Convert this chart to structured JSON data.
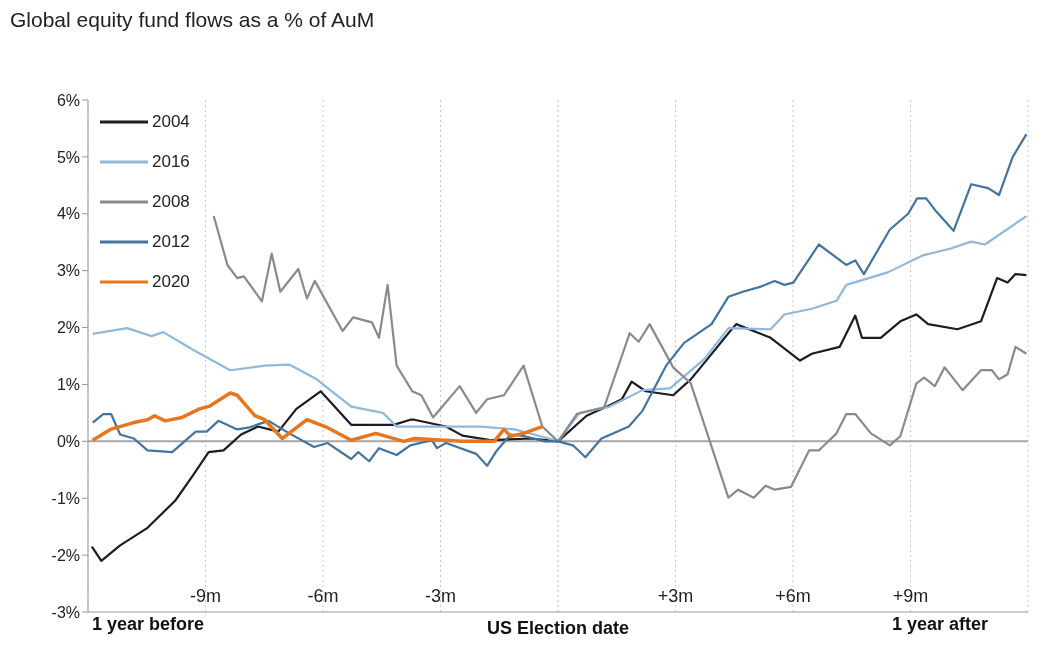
{
  "chart_data": {
    "type": "line",
    "title": "Global equity fund flows as a % of AuM",
    "xlim": [
      -12,
      12
    ],
    "xticks": [
      {
        "value": -9,
        "label": "-9m"
      },
      {
        "value": -6,
        "label": "-6m"
      },
      {
        "value": -3,
        "label": "-3m"
      },
      {
        "value": 3,
        "label": "+3m"
      },
      {
        "value": 6,
        "label": "+6m"
      },
      {
        "value": 9,
        "label": "+9m"
      }
    ],
    "annotations": [
      "1 year before",
      "1 year after"
    ],
    "ylim": [
      -3,
      6
    ],
    "yticks": [
      {
        "value": -3,
        "label": "-3%"
      },
      {
        "value": -2,
        "label": "-2%"
      },
      {
        "value": -1,
        "label": "-1%"
      },
      {
        "value": 0,
        "label": "0%"
      },
      {
        "value": 1,
        "label": "1%"
      },
      {
        "value": 2,
        "label": "2%"
      },
      {
        "value": 3,
        "label": "3%"
      },
      {
        "value": 4,
        "label": "4%"
      },
      {
        "value": 5,
        "label": "5%"
      },
      {
        "value": 6,
        "label": "6%"
      }
    ],
    "grid": "x",
    "legend": "top left",
    "marker": "none",
    "line_style": "solid",
    "ref_lines": [
      {
        "axis": "y",
        "value": 0,
        "label": null,
        "color": "#a6a6a6",
        "line_style": "solid"
      },
      {
        "axis": "x",
        "value": 0,
        "label": "US Election date",
        "color": "#c8c8c8",
        "line_style": "dotted"
      }
    ],
    "series": [
      {
        "name": "2004",
        "color": "#1c1c24",
        "x": [
          -11.9,
          -11.66,
          -11.18,
          -10.48,
          -9.77,
          -9.32,
          -8.92,
          -8.54,
          -8.09,
          -7.66,
          -7.14,
          -6.68,
          -6.06,
          -5.28,
          -4.65,
          -4.2,
          -3.77,
          -3.67,
          -2.86,
          -2.44,
          -1.73,
          -0.68,
          0,
          0.73,
          1.28,
          1.63,
          1.88,
          2.24,
          2.94,
          3.39,
          3.82,
          4.35,
          4.55,
          5.43,
          6.18,
          6.48,
          7.19,
          7.59,
          7.76,
          8.24,
          8.74,
          9.15,
          9.45,
          10.2,
          10.8,
          11.21,
          11.48,
          11.68,
          11.96
        ],
        "values": [
          -1.85,
          -2.1,
          -1.83,
          -1.52,
          -1.04,
          -0.6,
          -0.19,
          -0.16,
          0.12,
          0.26,
          0.17,
          0.57,
          0.88,
          0.29,
          0.29,
          0.29,
          0.38,
          0.38,
          0.26,
          0.1,
          0.02,
          0.05,
          0,
          0.45,
          0.62,
          0.74,
          1.05,
          0.88,
          0.81,
          1.09,
          1.45,
          1.9,
          2.06,
          1.82,
          1.42,
          1.54,
          1.66,
          2.21,
          1.82,
          1.82,
          2.11,
          2.23,
          2.06,
          1.97,
          2.11,
          2.87,
          2.79,
          2.94,
          2.92
        ]
      },
      {
        "name": "2016",
        "color": "#8fb8dc",
        "x": [
          -11.88,
          -11.0,
          -10.38,
          -10.08,
          -9.32,
          -8.37,
          -7.49,
          -6.86,
          -6.16,
          -5.28,
          -4.47,
          -4.12,
          -3.67,
          -2.86,
          -1.98,
          -1.11,
          -0.23,
          0,
          0.55,
          1.28,
          2.16,
          2.86,
          3.74,
          4.35,
          5.43,
          5.78,
          6.48,
          7.11,
          7.36,
          8.42,
          9.32,
          10.03,
          10.55,
          10.9,
          11.96
        ],
        "values": [
          1.89,
          1.99,
          1.85,
          1.92,
          1.61,
          1.25,
          1.33,
          1.35,
          1.09,
          0.61,
          0.5,
          0.26,
          0.26,
          0.26,
          0.26,
          0.21,
          0.05,
          0,
          0.5,
          0.6,
          0.9,
          0.93,
          1.45,
          1.99,
          1.97,
          2.23,
          2.33,
          2.47,
          2.75,
          2.97,
          3.27,
          3.39,
          3.51,
          3.46,
          3.96
        ]
      },
      {
        "name": "2008",
        "color": "#8a8a8a",
        "x": [
          -8.79,
          -8.44,
          -8.19,
          -8.02,
          -7.56,
          -7.31,
          -7.09,
          -6.63,
          -6.41,
          -6.21,
          -5.5,
          -5.23,
          -4.75,
          -4.57,
          -4.35,
          -4.12,
          -3.72,
          -3.49,
          -3.19,
          -2.51,
          -2.09,
          -1.81,
          -1.38,
          -0.88,
          -0.4,
          0,
          0.48,
          1.18,
          1.83,
          2.06,
          2.34,
          2.94,
          3.39,
          4.35,
          4.6,
          5.0,
          5.3,
          5.53,
          5.95,
          6.41,
          6.66,
          7.11,
          7.36,
          7.59,
          7.99,
          8.47,
          8.74,
          9.15,
          9.35,
          9.62,
          9.87,
          10.33,
          10.8,
          11.08,
          11.26,
          11.48,
          11.68,
          11.96
        ],
        "values": [
          3.96,
          3.1,
          2.87,
          2.9,
          2.46,
          3.3,
          2.63,
          3.03,
          2.51,
          2.82,
          1.94,
          2.18,
          2.09,
          1.82,
          2.75,
          1.33,
          0.88,
          0.81,
          0.42,
          0.97,
          0.5,
          0.74,
          0.81,
          1.33,
          0.26,
          0,
          0.48,
          0.6,
          1.9,
          1.75,
          2.06,
          1.3,
          1.02,
          -0.99,
          -0.85,
          -0.99,
          -0.78,
          -0.85,
          -0.8,
          -0.16,
          -0.16,
          0.14,
          0.48,
          0.48,
          0.14,
          -0.07,
          0.09,
          1.02,
          1.12,
          0.97,
          1.3,
          0.9,
          1.25,
          1.25,
          1.09,
          1.18,
          1.66,
          1.54
        ]
      },
      {
        "name": "2012",
        "color": "#44749d",
        "x": [
          -11.88,
          -11.61,
          -11.41,
          -11.18,
          -10.83,
          -10.48,
          -9.85,
          -9.25,
          -8.97,
          -8.67,
          -8.19,
          -7.91,
          -7.39,
          -6.86,
          -6.23,
          -5.88,
          -5.28,
          -5.1,
          -4.82,
          -4.57,
          -4.12,
          -3.77,
          -3.22,
          -3.09,
          -2.86,
          -2.09,
          -1.81,
          -1.56,
          -1.21,
          -0.85,
          -0.33,
          0,
          0.38,
          0.7,
          1.11,
          1.81,
          2.16,
          2.76,
          3.22,
          3.92,
          4.35,
          4.72,
          5.18,
          5.53,
          5.78,
          6.01,
          6.66,
          7.36,
          7.59,
          7.81,
          8.47,
          8.94,
          9.17,
          9.4,
          9.67,
          10.1,
          10.55,
          10.98,
          11.26,
          11.61,
          11.96
        ],
        "values": [
          0.33,
          0.48,
          0.48,
          0.12,
          0.05,
          -0.16,
          -0.19,
          0.17,
          0.17,
          0.36,
          0.21,
          0.24,
          0.36,
          0.14,
          -0.1,
          -0.03,
          -0.31,
          -0.19,
          -0.35,
          -0.12,
          -0.24,
          -0.07,
          0.02,
          -0.12,
          -0.03,
          -0.22,
          -0.43,
          -0.16,
          0.12,
          0.09,
          0,
          0,
          -0.07,
          -0.28,
          0.05,
          0.26,
          0.54,
          1.33,
          1.73,
          2.06,
          2.54,
          2.63,
          2.72,
          2.82,
          2.75,
          2.79,
          3.46,
          3.1,
          3.18,
          2.94,
          3.72,
          4.0,
          4.27,
          4.27,
          4.03,
          3.7,
          4.52,
          4.45,
          4.33,
          5.0,
          5.4
        ]
      },
      {
        "name": "2020",
        "color": "#e8761e",
        "x": [
          -11.88,
          -11.43,
          -10.83,
          -10.48,
          -10.3,
          -10.03,
          -9.6,
          -9.15,
          -8.89,
          -8.37,
          -8.19,
          -7.74,
          -7.49,
          -7.04,
          -6.41,
          -5.88,
          -5.28,
          -4.65,
          -3.94,
          -3.67,
          -2.44,
          -1.63,
          -1.38,
          -1.21,
          -0.88,
          -0.4
        ],
        "values": [
          0.02,
          0.21,
          0.33,
          0.38,
          0.45,
          0.36,
          0.42,
          0.57,
          0.62,
          0.85,
          0.81,
          0.45,
          0.38,
          0.05,
          0.38,
          0.24,
          0.02,
          0.14,
          0,
          0.05,
          0,
          0,
          0.21,
          0.09,
          0.14,
          0.26
        ]
      }
    ]
  }
}
